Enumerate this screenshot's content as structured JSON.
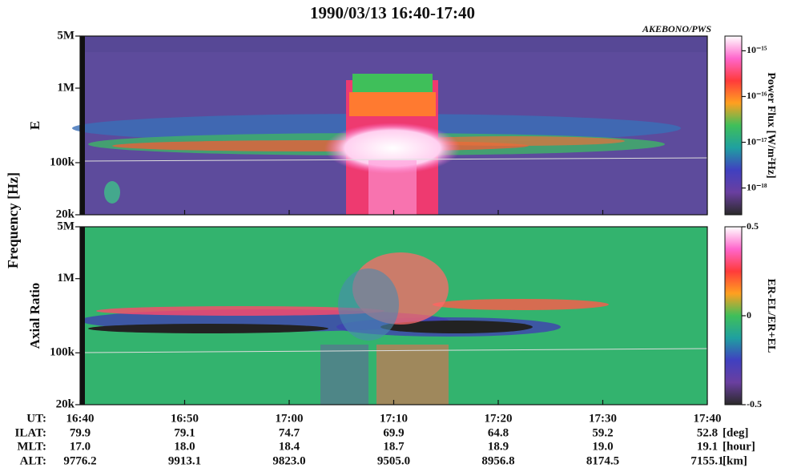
{
  "chart_data": [
    {
      "type": "spectrogram",
      "title": "1990/03/13 16:40-17:40",
      "subtitle": "AKEBONO/PWS",
      "ylabel": "E",
      "log_y": true,
      "ylim": [
        20000,
        5000000
      ],
      "yticks": [
        {
          "value": 5000000,
          "label": "5M"
        },
        {
          "value": 1000000,
          "label": "1M"
        },
        {
          "value": 100000,
          "label": "100k"
        },
        {
          "value": 20000,
          "label": "20k"
        }
      ],
      "colorbar": {
        "label": "Power Flux [W/m²Hz]",
        "log": true,
        "clim": [
          2.6e-19,
          2.1e-15
        ],
        "colormap": [
          "#ffffff",
          "#ff66cc",
          "#ff3b3b",
          "#ffa020",
          "#3fbf5a",
          "#1fa0a0",
          "#4040c0",
          "#6a3fa0",
          "#2a2a2a"
        ],
        "ticks": [
          {
            "value": 1e-15,
            "label": "10⁻¹⁵"
          },
          {
            "value": 1e-16,
            "label": "10⁻¹⁶"
          },
          {
            "value": 1e-17,
            "label": "10⁻¹⁷"
          },
          {
            "value": 1e-18,
            "label": "10⁻¹⁸"
          }
        ]
      }
    },
    {
      "type": "spectrogram",
      "ylabel": "Axial Ratio",
      "log_y": true,
      "ylim": [
        20000,
        5000000
      ],
      "yticks": [
        {
          "value": 5000000,
          "label": "5M"
        },
        {
          "value": 1000000,
          "label": "1M"
        },
        {
          "value": 100000,
          "label": "100k"
        },
        {
          "value": 20000,
          "label": "20k"
        }
      ],
      "colorbar": {
        "label": "ER-EL/ER+EL",
        "log": false,
        "clim": [
          -0.5,
          0.5
        ],
        "colormap": [
          "#ffffff",
          "#ff66cc",
          "#ff3b3b",
          "#ffa020",
          "#3fbf5a",
          "#1fa0a0",
          "#4040c0",
          "#6a3fa0",
          "#2a2a2a"
        ],
        "ticks": [
          0.5,
          0,
          -0.5
        ]
      }
    }
  ],
  "shared_axis": {
    "ylabel": "Frequency [Hz]",
    "x_name": "UT:",
    "x": [
      "16:40",
      "16:50",
      "17:00",
      "17:10",
      "17:20",
      "17:30",
      "17:40"
    ],
    "rows": [
      {
        "name": "ILAT:",
        "unit": "[deg]",
        "values": [
          79.9,
          79.1,
          74.7,
          69.9,
          64.8,
          59.2,
          52.8
        ],
        "value_labels": [
          "79.9",
          "79.1",
          "74.7",
          "69.9",
          "64.8",
          "59.2",
          "52.8"
        ]
      },
      {
        "name": "MLT:",
        "unit": "[hour]",
        "values": [
          17.0,
          18.0,
          18.4,
          18.7,
          18.9,
          19.0,
          19.1
        ],
        "value_labels": [
          "17.0",
          "18.0",
          "18.4",
          "18.7",
          "18.9",
          "19.0",
          "19.1"
        ]
      },
      {
        "name": "ALT:",
        "unit": "[km]",
        "values": [
          9776.2,
          9913.1,
          9823.0,
          9505.0,
          8956.8,
          8174.5,
          7155.1
        ],
        "value_labels": [
          "9776.2",
          "9913.1",
          "9823.0",
          "9505.0",
          "8956.8",
          "8174.5",
          "7155.1"
        ]
      }
    ]
  }
}
